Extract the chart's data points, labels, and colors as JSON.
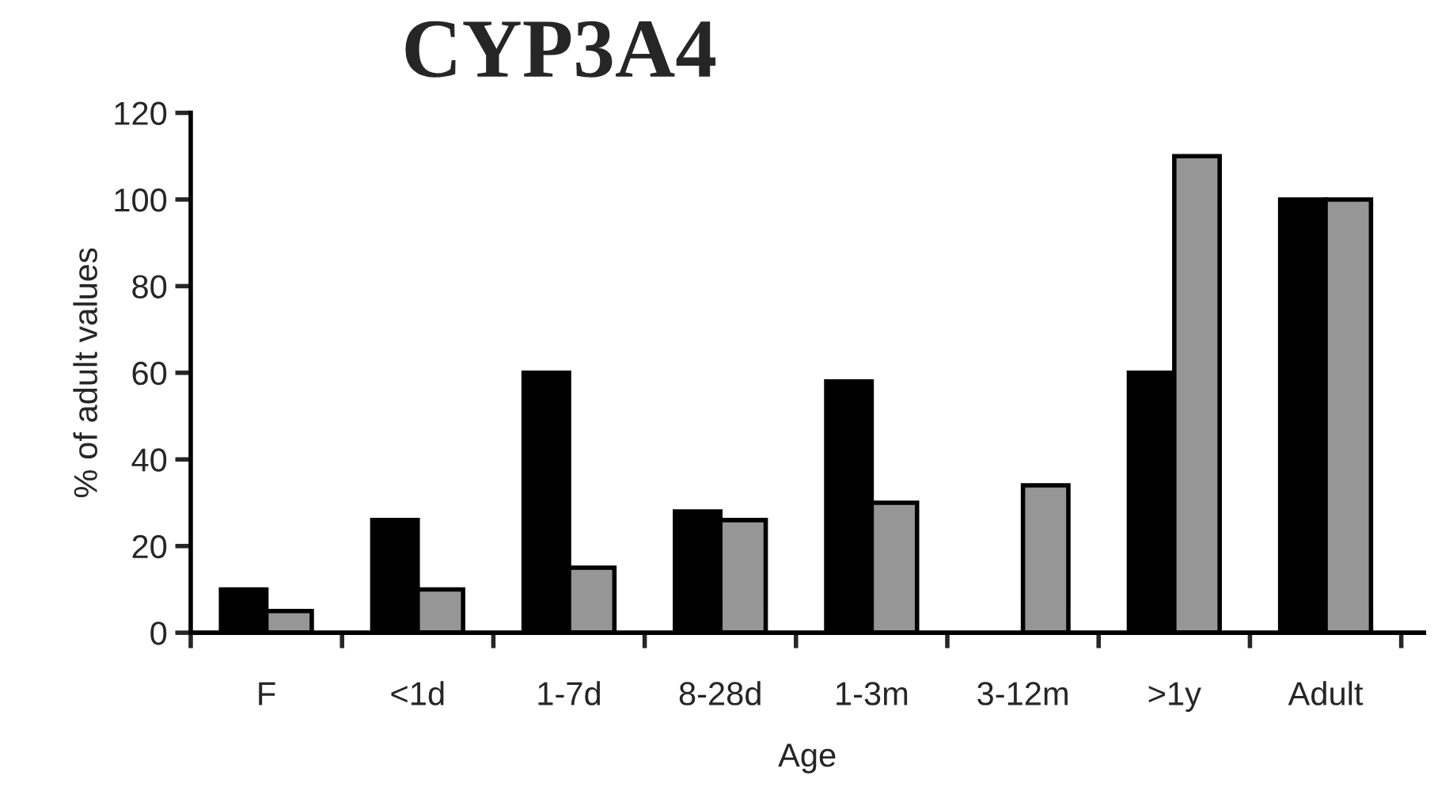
{
  "chart_data": {
    "type": "bar",
    "title": "CYP3A4",
    "xlabel": "Age",
    "ylabel": "% of adult values",
    "categories": [
      "F",
      "<1d",
      "1-7d",
      "8-28d",
      "1-3m",
      "3-12m",
      ">1y",
      "Adult"
    ],
    "series": [
      {
        "color": "#000000",
        "values": [
          10,
          26,
          60,
          28,
          58,
          null,
          60,
          100
        ]
      },
      {
        "color": "#969696",
        "values": [
          5,
          10,
          15,
          26,
          30,
          34,
          110,
          100
        ]
      }
    ],
    "ylim": [
      0,
      120
    ],
    "yticks": [
      0,
      20,
      40,
      60,
      80,
      100,
      120
    ],
    "grid": false,
    "legend": false
  }
}
